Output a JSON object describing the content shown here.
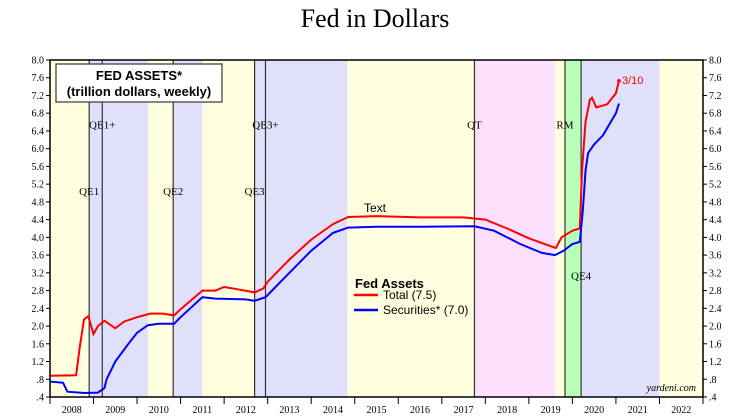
{
  "chart_data": {
    "type": "line",
    "title": "Fed in Dollars",
    "box_title": "FED ASSETS*",
    "box_subtitle": "(trillion dollars, weekly)",
    "xlim": [
      2008,
      2023
    ],
    "ylim": [
      0.4,
      8.0
    ],
    "yticks": [
      ".4",
      ".8",
      "1.2",
      "1.6",
      "2.0",
      "2.4",
      "2.8",
      "3.2",
      "3.6",
      "4.0",
      "4.4",
      "4.8",
      "5.2",
      "5.6",
      "6.0",
      "6.4",
      "6.8",
      "7.2",
      "7.6",
      "8.0"
    ],
    "xtick_labels": [
      "2008",
      "2009",
      "2010",
      "2011",
      "2012",
      "2013",
      "2014",
      "2015",
      "2016",
      "2017",
      "2018",
      "2019",
      "2020",
      "2021",
      "2022"
    ],
    "legend": {
      "title": "Fed Assets",
      "placement": "center-right"
    },
    "series": [
      {
        "name": "Total (7.5)",
        "color": "#ff0000",
        "points": [
          [
            2008,
            0.88
          ],
          [
            2008.6,
            0.89
          ],
          [
            2008.68,
            1.5
          ],
          [
            2008.78,
            2.15
          ],
          [
            2008.88,
            2.22
          ],
          [
            2009.0,
            1.82
          ],
          [
            2009.1,
            2.0
          ],
          [
            2009.25,
            2.12
          ],
          [
            2009.5,
            1.95
          ],
          [
            2009.7,
            2.1
          ],
          [
            2010.0,
            2.2
          ],
          [
            2010.3,
            2.28
          ],
          [
            2010.6,
            2.28
          ],
          [
            2010.85,
            2.24
          ],
          [
            2011.0,
            2.38
          ],
          [
            2011.5,
            2.8
          ],
          [
            2011.8,
            2.8
          ],
          [
            2012.0,
            2.88
          ],
          [
            2012.3,
            2.83
          ],
          [
            2012.7,
            2.76
          ],
          [
            2012.9,
            2.85
          ],
          [
            2013.0,
            3.0
          ],
          [
            2013.5,
            3.5
          ],
          [
            2014.0,
            3.95
          ],
          [
            2014.5,
            4.3
          ],
          [
            2014.85,
            4.46
          ],
          [
            2015.5,
            4.48
          ],
          [
            2016.5,
            4.45
          ],
          [
            2017.5,
            4.45
          ],
          [
            2018.0,
            4.4
          ],
          [
            2018.5,
            4.2
          ],
          [
            2019.0,
            3.98
          ],
          [
            2019.5,
            3.8
          ],
          [
            2019.62,
            3.76
          ],
          [
            2019.75,
            4.0
          ],
          [
            2020.0,
            4.15
          ],
          [
            2020.17,
            4.2
          ],
          [
            2020.22,
            5.5
          ],
          [
            2020.3,
            6.6
          ],
          [
            2020.4,
            7.1
          ],
          [
            2020.45,
            7.15
          ],
          [
            2020.55,
            6.93
          ],
          [
            2020.8,
            7.0
          ],
          [
            2021.0,
            7.25
          ],
          [
            2021.05,
            7.45
          ],
          [
            2021.07,
            7.53
          ]
        ]
      },
      {
        "name": "Securities* (7.0)",
        "color": "#0000ff",
        "points": [
          [
            2008,
            0.75
          ],
          [
            2008.3,
            0.72
          ],
          [
            2008.4,
            0.52
          ],
          [
            2008.8,
            0.49
          ],
          [
            2009.1,
            0.5
          ],
          [
            2009.25,
            0.6
          ],
          [
            2009.3,
            0.8
          ],
          [
            2009.5,
            1.2
          ],
          [
            2009.8,
            1.6
          ],
          [
            2010.0,
            1.85
          ],
          [
            2010.25,
            2.02
          ],
          [
            2010.5,
            2.05
          ],
          [
            2010.85,
            2.05
          ],
          [
            2011.0,
            2.2
          ],
          [
            2011.5,
            2.65
          ],
          [
            2011.8,
            2.62
          ],
          [
            2012.5,
            2.6
          ],
          [
            2012.7,
            2.57
          ],
          [
            2012.95,
            2.65
          ],
          [
            2013.5,
            3.2
          ],
          [
            2014.0,
            3.7
          ],
          [
            2014.5,
            4.1
          ],
          [
            2014.85,
            4.22
          ],
          [
            2015.5,
            4.24
          ],
          [
            2016.5,
            4.24
          ],
          [
            2017.75,
            4.25
          ],
          [
            2018.2,
            4.15
          ],
          [
            2018.8,
            3.85
          ],
          [
            2019.3,
            3.65
          ],
          [
            2019.6,
            3.6
          ],
          [
            2019.8,
            3.7
          ],
          [
            2020.0,
            3.85
          ],
          [
            2020.17,
            3.9
          ],
          [
            2020.24,
            4.6
          ],
          [
            2020.3,
            5.5
          ],
          [
            2020.36,
            5.9
          ],
          [
            2020.5,
            6.1
          ],
          [
            2020.7,
            6.3
          ],
          [
            2021.0,
            6.8
          ],
          [
            2021.07,
            7.02
          ]
        ]
      }
    ],
    "bands": [
      {
        "from": 2008,
        "to": 2008.9,
        "color": "#ffffe0"
      },
      {
        "from": 2008.9,
        "to": 2010.25,
        "color": "#e0e0fa"
      },
      {
        "from": 2010.25,
        "to": 2010.83,
        "color": "#ffffe0"
      },
      {
        "from": 2010.83,
        "to": 2011.5,
        "color": "#e0e0fa"
      },
      {
        "from": 2011.5,
        "to": 2012.7,
        "color": "#ffffe0"
      },
      {
        "from": 2012.7,
        "to": 2014.83,
        "color": "#e0e0fa"
      },
      {
        "from": 2014.83,
        "to": 2017.75,
        "color": "#ffffe0"
      },
      {
        "from": 2017.75,
        "to": 2019.6,
        "color": "#fde0fc"
      },
      {
        "from": 2019.6,
        "to": 2019.83,
        "color": "#ffffe0"
      },
      {
        "from": 2019.83,
        "to": 2020.2,
        "color": "#b8fdb8"
      },
      {
        "from": 2020.2,
        "to": 2022.0,
        "color": "#e0e0fa"
      },
      {
        "from": 2022.0,
        "to": 2023,
        "color": "#ffffe0"
      }
    ],
    "events": [
      {
        "label": "QE1",
        "x": 2008.9,
        "label_y": 4.95
      },
      {
        "label": "QE1+",
        "x": 2009.2,
        "label_y": 6.45
      },
      {
        "label": "QE2",
        "x": 2010.83,
        "label_y": 4.95
      },
      {
        "label": "QE3",
        "x": 2012.7,
        "label_y": 4.95
      },
      {
        "label": "QE3+",
        "x": 2012.95,
        "label_y": 6.45
      },
      {
        "label": "QT",
        "x": 2017.75,
        "label_y": 6.45
      },
      {
        "label": "RM",
        "x": 2019.83,
        "label_y": 6.45
      },
      {
        "label": "QE4",
        "x": 2020.2,
        "label_y": 3.05
      }
    ],
    "annotations": {
      "last_date": "3/10",
      "text_label": "Text",
      "source": "yardeni.com"
    }
  }
}
